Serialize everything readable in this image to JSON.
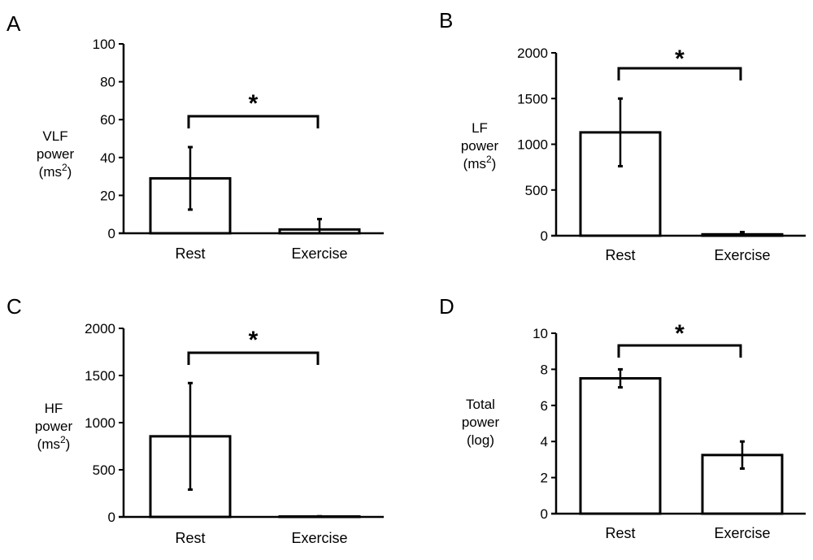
{
  "chart_data": [
    {
      "type": "bar",
      "panel": "A",
      "categories": [
        "Rest",
        "Exercise"
      ],
      "values": [
        29,
        2
      ],
      "error": [
        16.5,
        5.5
      ],
      "ylabel_lines": [
        "VLF",
        "power",
        "(ms2)"
      ],
      "ylim": [
        0,
        100
      ],
      "yticks": [
        "0",
        "20",
        "40",
        "60",
        "80",
        "100"
      ],
      "significance": "*"
    },
    {
      "type": "bar",
      "panel": "B",
      "categories": [
        "Rest",
        "Exercise"
      ],
      "values": [
        1130,
        15
      ],
      "error": [
        370,
        25
      ],
      "ylabel_lines": [
        "LF",
        "power",
        "(ms2)"
      ],
      "ylim": [
        0,
        2000
      ],
      "yticks": [
        "0",
        "500",
        "1000",
        "1500",
        "2000"
      ],
      "significance": "*"
    },
    {
      "type": "bar",
      "panel": "C",
      "categories": [
        "Rest",
        "Exercise"
      ],
      "values": [
        855,
        5
      ],
      "error": [
        565,
        2
      ],
      "ylabel_lines": [
        "HF",
        "power",
        "(ms2)"
      ],
      "ylim": [
        0,
        2000
      ],
      "yticks": [
        "0",
        "500",
        "1000",
        "1500",
        "2000"
      ],
      "significance": "*"
    },
    {
      "type": "bar",
      "panel": "D",
      "categories": [
        "Rest",
        "Exercise"
      ],
      "values": [
        7.5,
        3.25
      ],
      "error": [
        0.5,
        0.75
      ],
      "ylabel_lines": [
        "Total",
        "power",
        "(log)"
      ],
      "ylim": [
        0,
        10
      ],
      "yticks": [
        "0",
        "2",
        "4",
        "6",
        "8",
        "10"
      ],
      "significance": "*"
    }
  ]
}
